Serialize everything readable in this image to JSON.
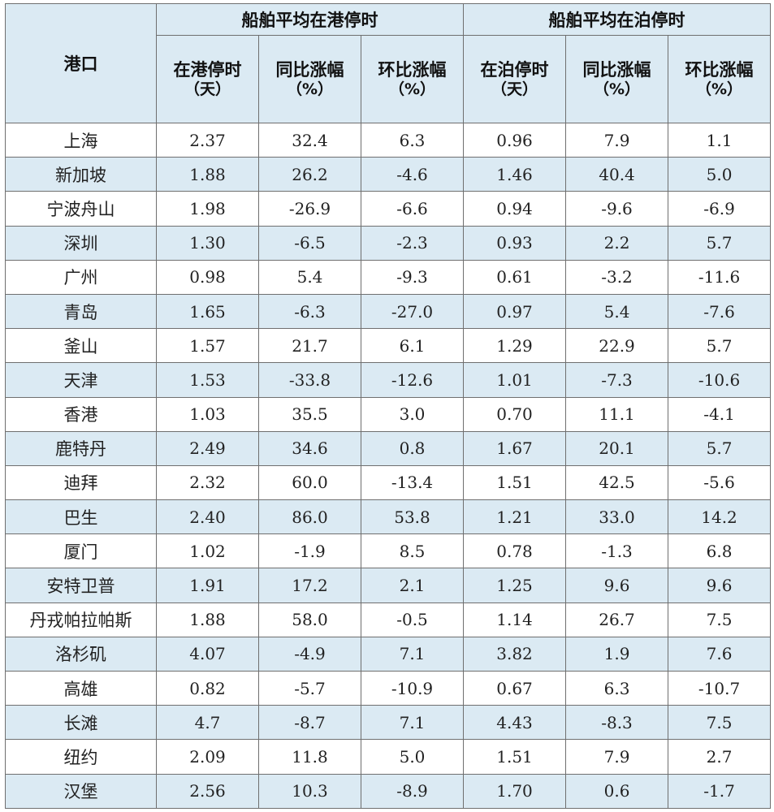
{
  "table": {
    "port_header": "港口",
    "groups": [
      {
        "title": "船舶平均在港停时",
        "columns": [
          {
            "label": "在港停时",
            "unit": "（天）"
          },
          {
            "label": "同比涨幅",
            "unit": "（%）"
          },
          {
            "label": "环比涨幅",
            "unit": "（%）"
          }
        ]
      },
      {
        "title": "船舶平均在泊停时",
        "columns": [
          {
            "label": "在泊停时",
            "unit": "（天）"
          },
          {
            "label": "同比涨幅",
            "unit": "（%）"
          },
          {
            "label": "环比涨幅",
            "unit": "（%）"
          }
        ]
      }
    ],
    "rows": [
      {
        "port": "上海",
        "values": [
          "2.37",
          "32.4",
          "6.3",
          "0.96",
          "7.9",
          "1.1"
        ]
      },
      {
        "port": "新加坡",
        "values": [
          "1.88",
          "26.2",
          "-4.6",
          "1.46",
          "40.4",
          "5.0"
        ]
      },
      {
        "port": "宁波舟山",
        "values": [
          "1.98",
          "-26.9",
          "-6.6",
          "0.94",
          "-9.6",
          "-6.9"
        ]
      },
      {
        "port": "深圳",
        "values": [
          "1.30",
          "-6.5",
          "-2.3",
          "0.93",
          "2.2",
          "5.7"
        ]
      },
      {
        "port": "广州",
        "values": [
          "0.98",
          "5.4",
          "-9.3",
          "0.61",
          "-3.2",
          "-11.6"
        ]
      },
      {
        "port": "青岛",
        "values": [
          "1.65",
          "-6.3",
          "-27.0",
          "0.97",
          "5.4",
          "-7.6"
        ]
      },
      {
        "port": "釜山",
        "values": [
          "1.57",
          "21.7",
          "6.1",
          "1.29",
          "22.9",
          "5.7"
        ]
      },
      {
        "port": "天津",
        "values": [
          "1.53",
          "-33.8",
          "-12.6",
          "1.01",
          "-7.3",
          "-10.6"
        ]
      },
      {
        "port": "香港",
        "values": [
          "1.03",
          "35.5",
          "3.0",
          "0.70",
          "11.1",
          "-4.1"
        ]
      },
      {
        "port": "鹿特丹",
        "values": [
          "2.49",
          "34.6",
          "0.8",
          "1.67",
          "20.1",
          "5.7"
        ]
      },
      {
        "port": "迪拜",
        "values": [
          "2.32",
          "60.0",
          "-13.4",
          "1.51",
          "42.5",
          "-5.6"
        ]
      },
      {
        "port": "巴生",
        "values": [
          "2.40",
          "86.0",
          "53.8",
          "1.21",
          "33.0",
          "14.2"
        ]
      },
      {
        "port": "厦门",
        "values": [
          "1.02",
          "-1.9",
          "8.5",
          "0.78",
          "-1.3",
          "6.8"
        ]
      },
      {
        "port": "安特卫普",
        "values": [
          "1.91",
          "17.2",
          "2.1",
          "1.25",
          "9.6",
          "9.6"
        ]
      },
      {
        "port": "丹戎帕拉帕斯",
        "values": [
          "1.88",
          "58.0",
          "-0.5",
          "1.14",
          "26.7",
          "7.5"
        ]
      },
      {
        "port": "洛杉矶",
        "values": [
          "4.07",
          "-4.9",
          "7.1",
          "3.82",
          "1.9",
          "7.6"
        ]
      },
      {
        "port": "高雄",
        "values": [
          "0.82",
          "-5.7",
          "-10.9",
          "0.67",
          "6.3",
          "-10.7"
        ]
      },
      {
        "port": "长滩",
        "values": [
          "4.7",
          "-8.7",
          "7.1",
          "4.43",
          "-8.3",
          "7.5"
        ]
      },
      {
        "port": "纽约",
        "values": [
          "2.09",
          "11.8",
          "5.0",
          "1.51",
          "7.9",
          "2.7"
        ]
      },
      {
        "port": "汉堡",
        "values": [
          "2.56",
          "10.3",
          "-8.9",
          "1.70",
          "0.6",
          "-1.7"
        ]
      }
    ]
  },
  "colors": {
    "header_bg": "#dbeaf3",
    "stripe_bg": "#dbeaf3",
    "border": "#6f6f6f"
  }
}
